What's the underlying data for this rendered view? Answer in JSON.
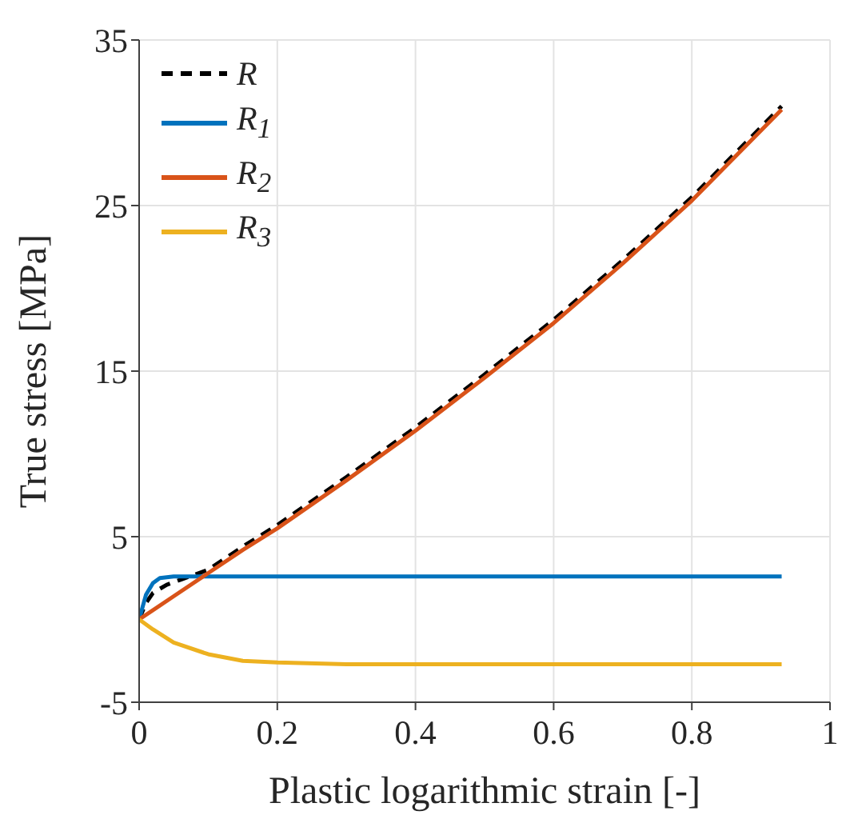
{
  "chart_data": {
    "type": "line",
    "xlabel": "Plastic logarithmic strain [-]",
    "ylabel": "True stress [MPa]",
    "xlim": [
      0,
      1
    ],
    "xticks": [
      0,
      0.2,
      0.4,
      0.6,
      0.8,
      1
    ],
    "ylim": [
      -5,
      35
    ],
    "yticks": [
      -5,
      5,
      15,
      25,
      35
    ],
    "grid": true,
    "legend": "top left",
    "marker": "none",
    "series": [
      {
        "name": "R",
        "color": "#000000",
        "line_style": "dashed",
        "x": [
          0,
          0.01,
          0.02,
          0.04,
          0.06,
          0.08,
          0.1,
          0.15,
          0.2,
          0.3,
          0.4,
          0.5,
          0.6,
          0.7,
          0.8,
          0.93
        ],
        "values": [
          0,
          1.0,
          1.6,
          2.1,
          2.4,
          2.7,
          3.0,
          4.4,
          5.7,
          8.6,
          11.6,
          14.8,
          18.1,
          21.7,
          25.5,
          31.0
        ]
      },
      {
        "name": "R$_{1}$",
        "color": "#0072bd",
        "line_style": "solid",
        "x": [
          0,
          0.01,
          0.02,
          0.03,
          0.05,
          0.93
        ],
        "values": [
          0,
          1.5,
          2.2,
          2.5,
          2.6,
          2.6
        ]
      },
      {
        "name": "R$_{2}$",
        "color": "#d95319",
        "line_style": "solid",
        "x": [
          0,
          0.05,
          0.1,
          0.15,
          0.2,
          0.3,
          0.4,
          0.5,
          0.6,
          0.7,
          0.8,
          0.93
        ],
        "values": [
          0,
          1.4,
          2.8,
          4.2,
          5.5,
          8.4,
          11.4,
          14.6,
          17.9,
          21.5,
          25.3,
          30.8
        ]
      },
      {
        "name": "R$_{3}$",
        "color": "#edb120",
        "line_style": "solid",
        "x": [
          0,
          0.02,
          0.05,
          0.1,
          0.15,
          0.2,
          0.3,
          0.93
        ],
        "values": [
          0,
          -0.6,
          -1.4,
          -2.1,
          -2.5,
          -2.6,
          -2.7,
          -2.7
        ]
      }
    ]
  }
}
